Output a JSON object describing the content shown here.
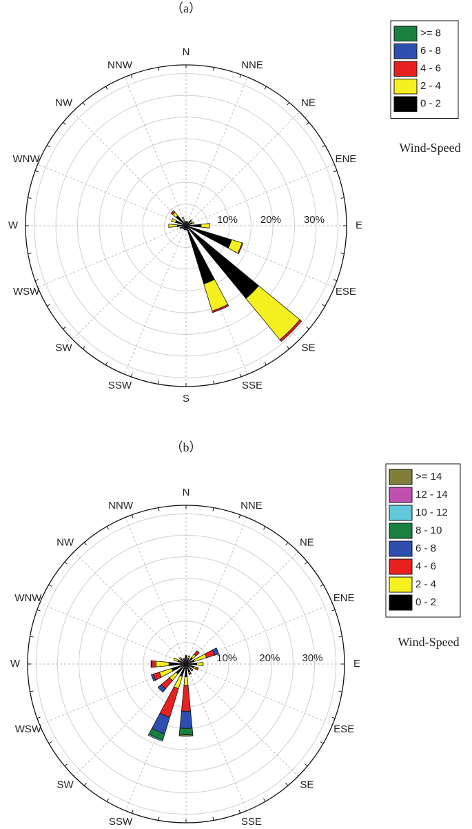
{
  "chart_data": [
    {
      "type": "windrose",
      "title": "（a）",
      "legend_title": "Wind-Speed",
      "directions": [
        "N",
        "NNE",
        "NE",
        "ENE",
        "E",
        "ESE",
        "SE",
        "SSE",
        "S",
        "SSW",
        "SW",
        "WSW",
        "W",
        "WNW",
        "NW",
        "NNW"
      ],
      "rlim": [
        0,
        37
      ],
      "rgrid": [
        5,
        10,
        15,
        20,
        25,
        30,
        35
      ],
      "rticks": [
        {
          "value": 10,
          "label": "10%"
        },
        {
          "value": 20,
          "label": "20%"
        },
        {
          "value": 30,
          "label": "30%"
        }
      ],
      "series": [
        {
          "name": "0 - 2",
          "color": "#000000",
          "values": [
            1,
            1,
            1.5,
            1.5,
            3.5,
            11,
            21.7,
            14,
            1,
            1,
            1,
            1.2,
            2,
            2.5,
            3,
            1
          ]
        },
        {
          "name": "2 - 4",
          "color": "#f5f020",
          "values": [
            0,
            0,
            0.3,
            0.4,
            2,
            2.5,
            12.3,
            6.5,
            0,
            0,
            0,
            0.3,
            2,
            1,
            1,
            1
          ]
        },
        {
          "name": "4 - 6",
          "color": "#e82020",
          "values": [
            0,
            0,
            0,
            0,
            0,
            0.2,
            0.5,
            0.4,
            0,
            0,
            0,
            0,
            0,
            0,
            0.5,
            0
          ]
        },
        {
          "name": "6 - 8",
          "color": "#2f4fb0",
          "values": [
            0,
            0,
            0,
            0,
            0,
            0,
            0,
            0,
            0,
            0,
            0,
            0,
            0,
            0,
            0,
            0
          ]
        },
        {
          "name": ">= 8",
          "color": "#1a8040",
          "values": [
            0,
            0,
            0,
            0,
            0,
            0,
            0,
            0,
            0,
            0,
            0,
            0,
            0,
            0,
            0,
            0
          ]
        }
      ]
    },
    {
      "type": "windrose",
      "title": "（b）",
      "legend_title": "Wind-Speed",
      "directions": [
        "N",
        "NNE",
        "NE",
        "ENE",
        "E",
        "ESE",
        "SE",
        "SSE",
        "S",
        "SSW",
        "SW",
        "WSW",
        "W",
        "WNW",
        "NW",
        "NNW"
      ],
      "rlim": [
        0,
        37
      ],
      "rgrid": [
        5,
        10,
        15,
        20,
        25,
        30,
        35
      ],
      "rticks": [
        {
          "value": 10,
          "label": "10%"
        },
        {
          "value": 20,
          "label": "20%"
        },
        {
          "value": 30,
          "label": "30%"
        }
      ],
      "series": [
        {
          "name": "0 - 2",
          "color": "#000000",
          "values": [
            2,
            1.5,
            2,
            2,
            2.5,
            2,
            1.5,
            2,
            3,
            3,
            3,
            3.5,
            4,
            2,
            1.5,
            1.2
          ]
        },
        {
          "name": "2 - 4",
          "color": "#f5f020",
          "values": [
            0,
            0.5,
            1,
            3,
            1.5,
            0.5,
            0.3,
            0.3,
            2,
            3,
            2,
            3,
            3,
            1,
            0.5,
            0.3
          ]
        },
        {
          "name": "4 - 6",
          "color": "#e82020",
          "values": [
            0,
            0,
            1,
            2,
            0,
            0.5,
            0.3,
            0.3,
            6,
            7,
            2.5,
            1.5,
            1,
            0,
            0,
            0
          ]
        },
        {
          "name": "6 - 8",
          "color": "#2f4fb0",
          "values": [
            0,
            0,
            0,
            1,
            0,
            0,
            0,
            0,
            4,
            4,
            1,
            0.5,
            0.2,
            0,
            0,
            0
          ]
        },
        {
          "name": "8 - 10",
          "color": "#1a8040",
          "values": [
            0,
            0,
            0,
            0,
            0,
            0,
            0,
            0,
            1.5,
            1.5,
            0,
            0,
            0,
            0,
            0,
            0
          ]
        },
        {
          "name": "10 - 12",
          "color": "#60c8d8",
          "values": [
            0,
            0,
            0,
            0,
            0,
            0,
            0,
            0,
            0,
            0.3,
            0,
            0,
            0,
            0,
            0,
            0
          ]
        },
        {
          "name": "12 - 14",
          "color": "#c050b0",
          "values": [
            0,
            0,
            0,
            0,
            0,
            0,
            0,
            0,
            0,
            0,
            0,
            0,
            0,
            0,
            0,
            0
          ]
        },
        {
          "name": ">= 14",
          "color": "#7f7f3a",
          "values": [
            0,
            0,
            0,
            0,
            0,
            0,
            0,
            0,
            0.3,
            0,
            0,
            0,
            0,
            0,
            0,
            0
          ]
        }
      ]
    }
  ]
}
